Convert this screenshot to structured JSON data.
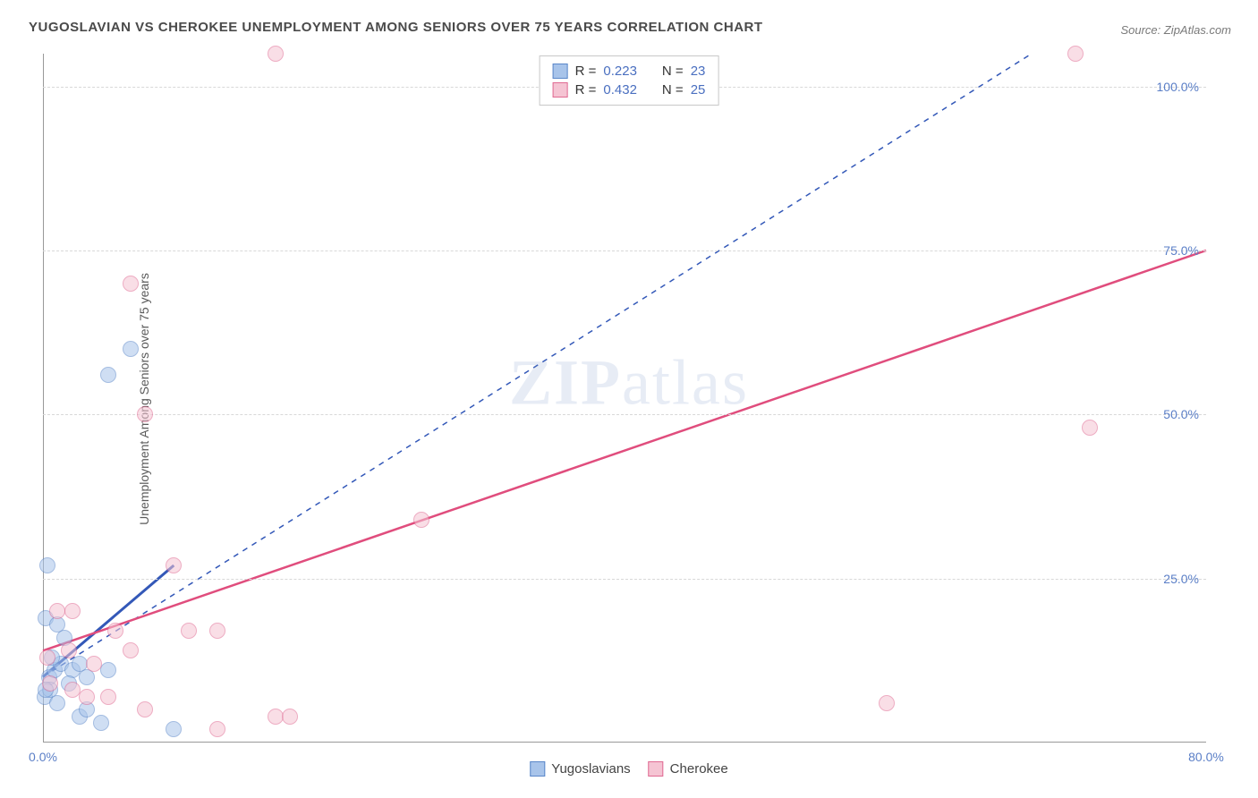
{
  "title": "YUGOSLAVIAN VS CHEROKEE UNEMPLOYMENT AMONG SENIORS OVER 75 YEARS CORRELATION CHART",
  "source_label": "Source: ZipAtlas.com",
  "yaxis_label": "Unemployment Among Seniors over 75 years",
  "watermark_bold": "ZIP",
  "watermark_light": "atlas",
  "chart": {
    "type": "scatter",
    "xlim": [
      0,
      80
    ],
    "ylim": [
      0,
      105
    ],
    "xtick_values": [
      0,
      80
    ],
    "xtick_labels": [
      "0.0%",
      "80.0%"
    ],
    "ytick_values": [
      25,
      50,
      75,
      100
    ],
    "ytick_labels": [
      "25.0%",
      "50.0%",
      "75.0%",
      "100.0%"
    ],
    "grid_color": "#d8d8d8",
    "background_color": "#ffffff",
    "axis_label_color": "#5b7fc7",
    "point_radius": 9,
    "point_opacity": 0.55,
    "series": [
      {
        "name": "Yugoslavians",
        "fill": "#a8c4ea",
        "stroke": "#5a87c9",
        "trend_color": "#3358b8",
        "trend_dash": "6,6",
        "trend_width": 1.5,
        "trend": {
          "x1": 0,
          "y1": 10,
          "x2": 68,
          "y2": 105
        },
        "trend_solid": {
          "x1": 0,
          "y1": 10,
          "x2": 9,
          "y2": 27
        },
        "R_label": "R =",
        "R": "0.223",
        "N_label": "N =",
        "N": "23",
        "points": [
          {
            "x": 0.3,
            "y": 27
          },
          {
            "x": 4.5,
            "y": 56
          },
          {
            "x": 6,
            "y": 60
          },
          {
            "x": 0.2,
            "y": 19
          },
          {
            "x": 1,
            "y": 18
          },
          {
            "x": 1.5,
            "y": 16
          },
          {
            "x": 0.4,
            "y": 10
          },
          {
            "x": 0.8,
            "y": 11
          },
          {
            "x": 1.2,
            "y": 12
          },
          {
            "x": 2,
            "y": 11
          },
          {
            "x": 2.5,
            "y": 12
          },
          {
            "x": 3,
            "y": 10
          },
          {
            "x": 0.1,
            "y": 7
          },
          {
            "x": 0.5,
            "y": 8
          },
          {
            "x": 1,
            "y": 6
          },
          {
            "x": 2.5,
            "y": 4
          },
          {
            "x": 3,
            "y": 5
          },
          {
            "x": 4,
            "y": 3
          },
          {
            "x": 4.5,
            "y": 11
          },
          {
            "x": 9,
            "y": 2
          },
          {
            "x": 0.6,
            "y": 13
          },
          {
            "x": 1.8,
            "y": 9
          },
          {
            "x": 0.2,
            "y": 8
          }
        ]
      },
      {
        "name": "Cherokee",
        "fill": "#f5c4d3",
        "stroke": "#e06a92",
        "trend_color": "#e04d7d",
        "trend_dash": "",
        "trend_width": 2.5,
        "trend": {
          "x1": 0,
          "y1": 14,
          "x2": 80,
          "y2": 75
        },
        "R_label": "R =",
        "R": "0.432",
        "N_label": "N =",
        "N": "25",
        "points": [
          {
            "x": 16,
            "y": 105
          },
          {
            "x": 71,
            "y": 105
          },
          {
            "x": 6,
            "y": 70
          },
          {
            "x": 7,
            "y": 50
          },
          {
            "x": 26,
            "y": 34
          },
          {
            "x": 9,
            "y": 27
          },
          {
            "x": 1,
            "y": 20
          },
          {
            "x": 2,
            "y": 20
          },
          {
            "x": 5,
            "y": 17
          },
          {
            "x": 10,
            "y": 17
          },
          {
            "x": 12,
            "y": 17
          },
          {
            "x": 6,
            "y": 14
          },
          {
            "x": 0.3,
            "y": 13
          },
          {
            "x": 1.8,
            "y": 14
          },
          {
            "x": 3.5,
            "y": 12
          },
          {
            "x": 0.5,
            "y": 9
          },
          {
            "x": 2,
            "y": 8
          },
          {
            "x": 3,
            "y": 7
          },
          {
            "x": 4.5,
            "y": 7
          },
          {
            "x": 7,
            "y": 5
          },
          {
            "x": 12,
            "y": 2
          },
          {
            "x": 16,
            "y": 4
          },
          {
            "x": 17,
            "y": 4
          },
          {
            "x": 58,
            "y": 6
          },
          {
            "x": 72,
            "y": 48
          }
        ]
      }
    ]
  },
  "legend_bottom": [
    {
      "label": "Yugoslavians",
      "fill": "#a8c4ea",
      "stroke": "#5a87c9"
    },
    {
      "label": "Cherokee",
      "fill": "#f5c4d3",
      "stroke": "#e06a92"
    }
  ]
}
